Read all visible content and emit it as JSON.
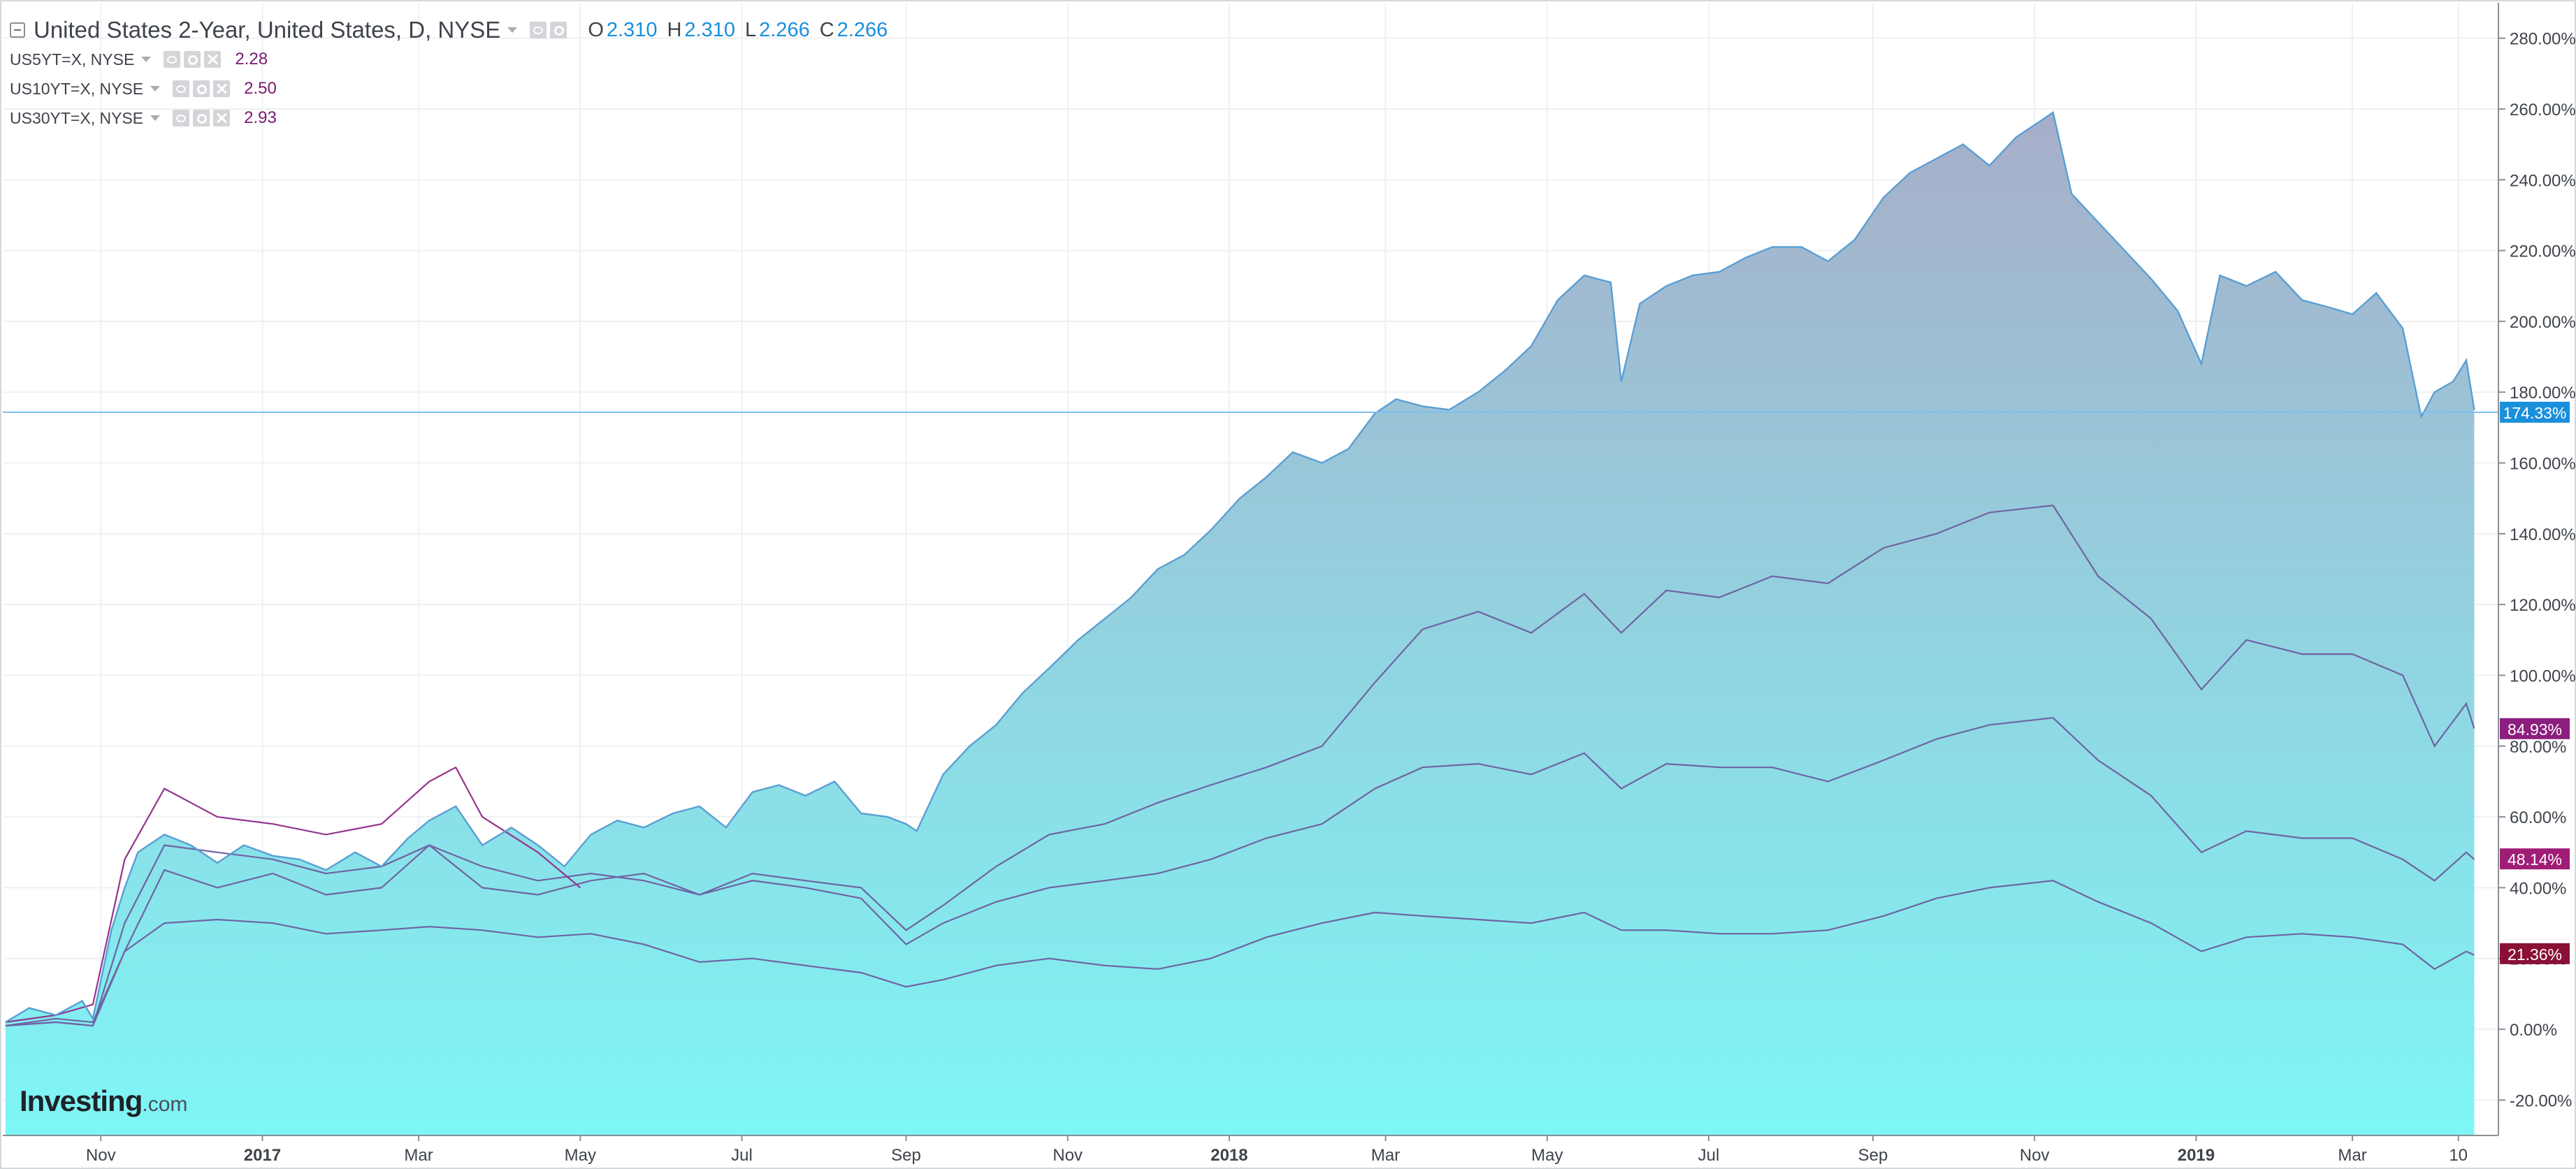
{
  "legend": {
    "main": {
      "title": "United States 2-Year, United States, D, NYSE",
      "o_key": "O",
      "o": "2.310",
      "h_key": "H",
      "h": "2.310",
      "l_key": "L",
      "l": "2.266",
      "c_key": "C",
      "c": "2.266"
    },
    "subs": [
      {
        "title": "US5YT=X, NYSE",
        "value": "2.28"
      },
      {
        "title": "US10YT=X, NYSE",
        "value": "2.50"
      },
      {
        "title": "US30YT=X, NYSE",
        "value": "2.93"
      }
    ]
  },
  "logo": {
    "brand": "Investing",
    "suffix": ".com"
  },
  "colors": {
    "area_line": "#5a9fd3",
    "area_top": "#a7aec9",
    "area_bottom": "#7ef6f6",
    "compare_line": "#6e64a3",
    "early_line": "#93358f",
    "crosshair": "#7fc1ee",
    "badge_main": "#1a8fdc",
    "badge_5y": "#8b1e7e",
    "badge_10y": "#a01d76",
    "badge_30y": "#8a1035",
    "axis_text": "#3f444b"
  },
  "chart_data": {
    "type": "area",
    "x_unit": "month",
    "xlim": [
      "2016-09-25",
      "2019-04-18"
    ],
    "ylim": [
      -30,
      290
    ],
    "yaxis_ticks": [
      "-20.00%",
      "0.00%",
      "20.00%",
      "40.00%",
      "60.00%",
      "80.00%",
      "100.00%",
      "120.00%",
      "140.00%",
      "160.00%",
      "180.00%",
      "200.00%",
      "220.00%",
      "240.00%",
      "260.00%",
      "280.00%"
    ],
    "ytick_values": [
      -20,
      0,
      20,
      40,
      60,
      80,
      100,
      120,
      140,
      160,
      180,
      200,
      220,
      240,
      260,
      280
    ],
    "xaxis_ticks": [
      {
        "label": "Nov",
        "date": "2016-11-01",
        "bold": false
      },
      {
        "label": "2017",
        "date": "2017-01-01",
        "bold": true
      },
      {
        "label": "Mar",
        "date": "2017-03-01",
        "bold": false
      },
      {
        "label": "May",
        "date": "2017-05-01",
        "bold": false
      },
      {
        "label": "Jul",
        "date": "2017-07-01",
        "bold": false
      },
      {
        "label": "Sep",
        "date": "2017-09-01",
        "bold": false
      },
      {
        "label": "Nov",
        "date": "2017-11-01",
        "bold": false
      },
      {
        "label": "2018",
        "date": "2018-01-01",
        "bold": true
      },
      {
        "label": "Mar",
        "date": "2018-03-01",
        "bold": false
      },
      {
        "label": "May",
        "date": "2018-05-01",
        "bold": false
      },
      {
        "label": "Jul",
        "date": "2018-07-01",
        "bold": false
      },
      {
        "label": "Sep",
        "date": "2018-09-01",
        "bold": false
      },
      {
        "label": "Nov",
        "date": "2018-11-01",
        "bold": false
      },
      {
        "label": "2019",
        "date": "2019-01-01",
        "bold": true
      },
      {
        "label": "Mar",
        "date": "2019-03-01",
        "bold": false
      },
      {
        "label": "10",
        "date": "2019-04-10",
        "bold": false
      }
    ],
    "grid": true,
    "current_value": 174.33,
    "series": [
      {
        "role": "area",
        "badge": "174.33%",
        "x": [
          "2016-09-26",
          "2016-10-05",
          "2016-10-15",
          "2016-10-25",
          "2016-10-29",
          "2016-11-05",
          "2016-11-10",
          "2016-11-15",
          "2016-11-25",
          "2016-12-05",
          "2016-12-15",
          "2016-12-25",
          "2017-01-05",
          "2017-01-15",
          "2017-01-25",
          "2017-02-05",
          "2017-02-15",
          "2017-02-25",
          "2017-03-05",
          "2017-03-15",
          "2017-03-25",
          "2017-04-05",
          "2017-04-15",
          "2017-04-25",
          "2017-05-05",
          "2017-05-15",
          "2017-05-25",
          "2017-06-05",
          "2017-06-15",
          "2017-06-25",
          "2017-07-05",
          "2017-07-15",
          "2017-07-25",
          "2017-08-05",
          "2017-08-15",
          "2017-08-25",
          "2017-09-01",
          "2017-09-05",
          "2017-09-15",
          "2017-09-25",
          "2017-10-05",
          "2017-10-15",
          "2017-10-25",
          "2017-11-05",
          "2017-11-15",
          "2017-11-25",
          "2017-12-05",
          "2017-12-15",
          "2017-12-25",
          "2018-01-05",
          "2018-01-15",
          "2018-01-25",
          "2018-02-05",
          "2018-02-15",
          "2018-02-25",
          "2018-03-05",
          "2018-03-15",
          "2018-03-25",
          "2018-04-05",
          "2018-04-15",
          "2018-04-25",
          "2018-05-05",
          "2018-05-15",
          "2018-05-25",
          "2018-05-29",
          "2018-06-05",
          "2018-06-15",
          "2018-06-25",
          "2018-07-05",
          "2018-07-15",
          "2018-07-25",
          "2018-08-05",
          "2018-08-15",
          "2018-08-25",
          "2018-09-05",
          "2018-09-15",
          "2018-09-25",
          "2018-10-05",
          "2018-10-15",
          "2018-10-25",
          "2018-11-08",
          "2018-11-15",
          "2018-11-25",
          "2018-12-05",
          "2018-12-15",
          "2018-12-25",
          "2019-01-03",
          "2019-01-10",
          "2019-01-20",
          "2019-01-31",
          "2019-02-10",
          "2019-02-20",
          "2019-03-01",
          "2019-03-10",
          "2019-03-20",
          "2019-03-27",
          "2019-04-01",
          "2019-04-08",
          "2019-04-13",
          "2019-04-16"
        ],
        "y": [
          2,
          6,
          4,
          8,
          3,
          28,
          40,
          50,
          55,
          52,
          47,
          52,
          49,
          48,
          45,
          50,
          46,
          54,
          59,
          63,
          52,
          57,
          52,
          46,
          55,
          59,
          57,
          61,
          63,
          57,
          67,
          69,
          66,
          70,
          61,
          60,
          58,
          56,
          72,
          80,
          86,
          95,
          102,
          110,
          116,
          122,
          130,
          134,
          141,
          150,
          156,
          163,
          160,
          164,
          174,
          178,
          176,
          175,
          180,
          186,
          193,
          206,
          213,
          211,
          183,
          205,
          210,
          213,
          214,
          218,
          221,
          221,
          217,
          223,
          235,
          242,
          246,
          250,
          244,
          252,
          259,
          236,
          228,
          220,
          212,
          203,
          188,
          213,
          210,
          214,
          206,
          204,
          202,
          208,
          198,
          173,
          180,
          183,
          189,
          175
        ]
      },
      {
        "role": "line",
        "name": "US5YT=X, NYSE",
        "badge": "84.93%",
        "x": [
          "2016-09-26",
          "2016-10-15",
          "2016-10-29",
          "2016-11-10",
          "2016-11-25",
          "2016-12-15",
          "2017-01-05",
          "2017-01-25",
          "2017-02-15",
          "2017-03-05",
          "2017-03-25",
          "2017-04-15",
          "2017-05-05",
          "2017-05-25",
          "2017-06-15",
          "2017-07-05",
          "2017-07-25",
          "2017-08-15",
          "2017-09-01",
          "2017-09-15",
          "2017-10-05",
          "2017-10-25",
          "2017-11-15",
          "2017-12-05",
          "2017-12-25",
          "2018-01-15",
          "2018-02-05",
          "2018-02-25",
          "2018-03-15",
          "2018-04-05",
          "2018-04-25",
          "2018-05-15",
          "2018-05-29",
          "2018-06-15",
          "2018-07-05",
          "2018-07-25",
          "2018-08-15",
          "2018-09-05",
          "2018-09-25",
          "2018-10-15",
          "2018-11-08",
          "2018-11-25",
          "2018-12-15",
          "2019-01-03",
          "2019-01-20",
          "2019-02-10",
          "2019-03-01",
          "2019-03-20",
          "2019-04-01",
          "2019-04-13",
          "2019-04-16"
        ],
        "y": [
          1,
          3,
          2,
          22,
          45,
          40,
          44,
          38,
          40,
          52,
          40,
          38,
          42,
          44,
          38,
          44,
          42,
          40,
          28,
          35,
          46,
          55,
          58,
          64,
          69,
          74,
          80,
          98,
          113,
          118,
          112,
          123,
          112,
          124,
          122,
          128,
          126,
          136,
          140,
          146,
          148,
          128,
          116,
          96,
          110,
          106,
          106,
          100,
          80,
          92,
          85
        ]
      },
      {
        "role": "line",
        "name": "US10YT=X, NYSE",
        "badge": "48.14%",
        "x": [
          "2016-09-26",
          "2016-10-15",
          "2016-10-29",
          "2016-11-10",
          "2016-11-25",
          "2016-12-15",
          "2017-01-05",
          "2017-01-25",
          "2017-02-15",
          "2017-03-05",
          "2017-03-25",
          "2017-04-15",
          "2017-05-05",
          "2017-05-25",
          "2017-06-15",
          "2017-07-05",
          "2017-07-25",
          "2017-08-15",
          "2017-09-01",
          "2017-09-15",
          "2017-10-05",
          "2017-10-25",
          "2017-11-15",
          "2017-12-05",
          "2017-12-25",
          "2018-01-15",
          "2018-02-05",
          "2018-02-25",
          "2018-03-15",
          "2018-04-05",
          "2018-04-25",
          "2018-05-15",
          "2018-05-29",
          "2018-06-15",
          "2018-07-05",
          "2018-07-25",
          "2018-08-15",
          "2018-09-05",
          "2018-09-25",
          "2018-10-15",
          "2018-11-08",
          "2018-11-25",
          "2018-12-15",
          "2019-01-03",
          "2019-01-20",
          "2019-02-10",
          "2019-03-01",
          "2019-03-20",
          "2019-04-01",
          "2019-04-13",
          "2019-04-16"
        ],
        "y": [
          1,
          2,
          1,
          30,
          52,
          50,
          48,
          44,
          46,
          52,
          46,
          42,
          44,
          42,
          38,
          42,
          40,
          37,
          24,
          30,
          36,
          40,
          42,
          44,
          48,
          54,
          58,
          68,
          74,
          75,
          72,
          78,
          68,
          75,
          74,
          74,
          70,
          76,
          82,
          86,
          88,
          76,
          66,
          50,
          56,
          54,
          54,
          48,
          42,
          50,
          48
        ]
      },
      {
        "role": "line",
        "name": "US30YT=X, NYSE",
        "badge": "21.36%",
        "x": [
          "2016-09-26",
          "2016-10-15",
          "2016-10-29",
          "2016-11-10",
          "2016-11-25",
          "2016-12-15",
          "2017-01-05",
          "2017-01-25",
          "2017-02-15",
          "2017-03-05",
          "2017-03-25",
          "2017-04-15",
          "2017-05-05",
          "2017-05-25",
          "2017-06-15",
          "2017-07-05",
          "2017-07-25",
          "2017-08-15",
          "2017-09-01",
          "2017-09-15",
          "2017-10-05",
          "2017-10-25",
          "2017-11-15",
          "2017-12-05",
          "2017-12-25",
          "2018-01-15",
          "2018-02-05",
          "2018-02-25",
          "2018-03-15",
          "2018-04-05",
          "2018-04-25",
          "2018-05-15",
          "2018-05-29",
          "2018-06-15",
          "2018-07-05",
          "2018-07-25",
          "2018-08-15",
          "2018-09-05",
          "2018-09-25",
          "2018-10-15",
          "2018-11-08",
          "2018-11-25",
          "2018-12-15",
          "2019-01-03",
          "2019-01-20",
          "2019-02-10",
          "2019-03-01",
          "2019-03-20",
          "2019-04-01",
          "2019-04-13",
          "2019-04-16"
        ],
        "y": [
          1,
          2,
          1,
          22,
          30,
          31,
          30,
          27,
          28,
          29,
          28,
          26,
          27,
          24,
          19,
          20,
          18,
          16,
          12,
          14,
          18,
          20,
          18,
          17,
          20,
          26,
          30,
          33,
          32,
          31,
          30,
          33,
          28,
          28,
          27,
          27,
          28,
          32,
          37,
          40,
          42,
          36,
          30,
          22,
          26,
          27,
          26,
          24,
          17,
          22,
          21
        ]
      },
      {
        "role": "line-early",
        "x": [
          "2016-09-26",
          "2016-10-15",
          "2016-10-29",
          "2016-11-10",
          "2016-11-25",
          "2016-12-05",
          "2016-12-15",
          "2017-01-05",
          "2017-01-25",
          "2017-02-15",
          "2017-03-05",
          "2017-03-15",
          "2017-03-25",
          "2017-04-15",
          "2017-05-01"
        ],
        "y": [
          2,
          4,
          7,
          48,
          68,
          64,
          60,
          58,
          55,
          58,
          70,
          74,
          60,
          50,
          40
        ]
      }
    ]
  }
}
